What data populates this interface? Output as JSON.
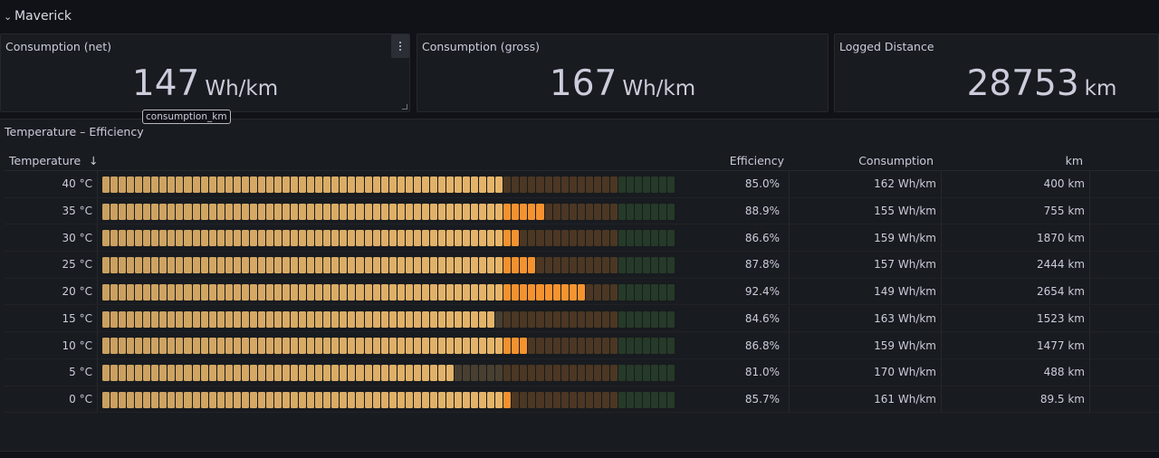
{
  "row": {
    "title": "Maverick"
  },
  "stats": [
    {
      "title": "Consumption (net)",
      "value": "147",
      "unit": "Wh/km"
    },
    {
      "title": "Consumption (gross)",
      "value": "167",
      "unit": "Wh/km"
    },
    {
      "title": "Logged Distance",
      "value": "28753",
      "unit": "km"
    }
  ],
  "tooltip": "consumption_km",
  "table": {
    "title": "Temperature – Efficiency",
    "headers": {
      "temperature": "Temperature",
      "sort_icon": "↓",
      "efficiency": "Efficiency",
      "consumption": "Consumption",
      "km": "km"
    },
    "rows": [
      {
        "temperature": "40 °C",
        "efficiency": "85.0%",
        "efficiency_value": 0.85,
        "consumption": "162 Wh/km",
        "km": "400 km"
      },
      {
        "temperature": "35 °C",
        "efficiency": "88.9%",
        "efficiency_value": 0.889,
        "consumption": "155 Wh/km",
        "km": "755 km"
      },
      {
        "temperature": "30 °C",
        "efficiency": "86.6%",
        "efficiency_value": 0.866,
        "consumption": "159 Wh/km",
        "km": "1870 km"
      },
      {
        "temperature": "25 °C",
        "efficiency": "87.8%",
        "efficiency_value": 0.878,
        "consumption": "157 Wh/km",
        "km": "2444 km"
      },
      {
        "temperature": "20 °C",
        "efficiency": "92.4%",
        "efficiency_value": 0.924,
        "consumption": "149 Wh/km",
        "km": "2654 km"
      },
      {
        "temperature": "15 °C",
        "efficiency": "84.6%",
        "efficiency_value": 0.846,
        "consumption": "163 Wh/km",
        "km": "1523 km"
      },
      {
        "temperature": "10 °C",
        "efficiency": "86.8%",
        "efficiency_value": 0.868,
        "consumption": "159 Wh/km",
        "km": "1477 km"
      },
      {
        "temperature": "5 °C",
        "efficiency": "81.0%",
        "efficiency_value": 0.81,
        "consumption": "170 Wh/km",
        "km": "488 km"
      },
      {
        "temperature": "0 °C",
        "efficiency": "85.7%",
        "efficiency_value": 0.857,
        "consumption": "161 Wh/km",
        "km": "89.5 km"
      }
    ]
  },
  "gauge": {
    "min_value": 0.5,
    "max_value": 1.0,
    "thresholds": [
      0.85,
      0.95
    ],
    "colors": {
      "base": "#f2be6f",
      "mid": "#ff9830",
      "high": "#56a64b"
    }
  }
}
